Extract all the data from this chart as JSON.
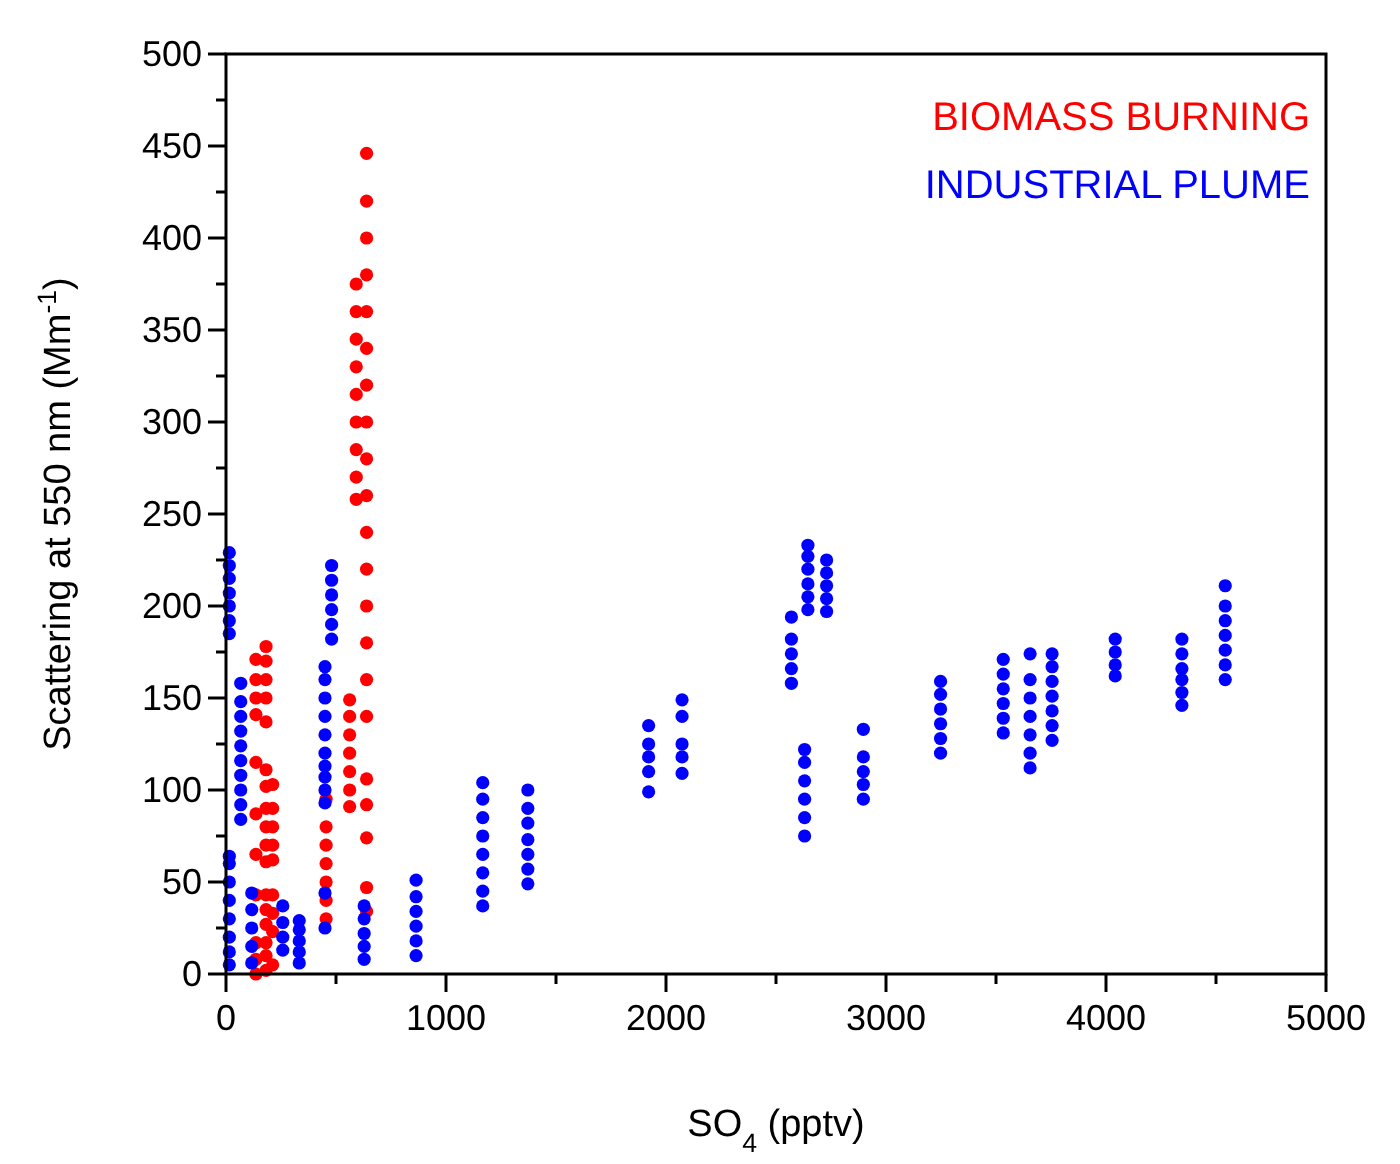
{
  "chart_data": {
    "type": "scatter",
    "xlabel": "SO$_{4}$ (pptv)",
    "ylabel": "Scattering at 550 nm (Mm$^{-1}$)",
    "xlim": [
      0,
      5000
    ],
    "ylim": [
      0,
      500
    ],
    "xticks": [
      0,
      {
        "value": 500,
        "label": null
      },
      1000,
      {
        "value": 1500,
        "label": null
      },
      2000,
      {
        "value": 2500,
        "label": null
      },
      3000,
      {
        "value": 3500,
        "label": null
      },
      4000,
      {
        "value": 4500,
        "label": null
      },
      5000
    ],
    "yticks": [
      0,
      {
        "value": 25,
        "label": null
      },
      50,
      {
        "value": 75,
        "label": null
      },
      100,
      {
        "value": 125,
        "label": null
      },
      150,
      {
        "value": 175,
        "label": null
      },
      200,
      {
        "value": 225,
        "label": null
      },
      250,
      {
        "value": 275,
        "label": null
      },
      300,
      {
        "value": 325,
        "label": null
      },
      350,
      {
        "value": 375,
        "label": null
      },
      400,
      {
        "value": 425,
        "label": null
      },
      450,
      {
        "value": 475,
        "label": null
      },
      500
    ],
    "marker": "circle",
    "legend": "top right",
    "series": [
      {
        "name": "BIOMASS BURNING",
        "color": "#ff0000",
        "x": [
          136,
          136,
          136,
          136,
          136,
          136,
          136,
          136,
          136,
          136,
          136,
          182,
          182,
          182,
          182,
          182,
          182,
          182,
          182,
          182,
          182,
          182,
          182,
          182,
          182,
          182,
          182,
          182,
          212,
          212,
          212,
          212,
          212,
          212,
          212,
          212,
          212,
          455,
          455,
          455,
          455,
          455,
          455,
          455,
          562,
          562,
          562,
          562,
          562,
          562,
          562,
          592,
          592,
          592,
          592,
          592,
          592,
          592,
          592,
          592,
          639,
          639,
          639,
          639,
          639,
          639,
          639,
          639,
          639,
          639,
          639,
          639,
          639,
          639,
          639,
          639,
          639,
          639,
          639,
          639,
          639
        ],
        "values": [
          141,
          150,
          160,
          171,
          115,
          87,
          65,
          43,
          17,
          8,
          0,
          178,
          170,
          160,
          150,
          137,
          111,
          102,
          90,
          80,
          70,
          61,
          43,
          35,
          27,
          17,
          10,
          2,
          103,
          90,
          80,
          70,
          62,
          43,
          33,
          23,
          5,
          30,
          40,
          50,
          60,
          70,
          80,
          95,
          91,
          100,
          110,
          120,
          130,
          140,
          149,
          258,
          270,
          285,
          300,
          315,
          330,
          345,
          360,
          375,
          140,
          160,
          180,
          200,
          220,
          240,
          260,
          280,
          300,
          320,
          340,
          360,
          380,
          400,
          420,
          446,
          106,
          92,
          74,
          47,
          34
        ]
      },
      {
        "name": "INDUSTRIAL PLUME",
        "color": "#0000ff",
        "x": [
          15,
          15,
          15,
          15,
          15,
          15,
          15,
          15,
          15,
          15,
          15,
          15,
          15,
          15,
          15,
          67,
          67,
          67,
          67,
          67,
          67,
          67,
          67,
          67,
          67,
          117,
          117,
          117,
          117,
          117,
          258,
          258,
          258,
          258,
          333,
          333,
          333,
          333,
          333,
          450,
          450,
          450,
          450,
          450,
          450,
          450,
          450,
          450,
          450,
          450,
          450,
          480,
          480,
          480,
          480,
          480,
          480,
          628,
          628,
          628,
          628,
          628,
          864,
          864,
          864,
          864,
          864,
          864,
          1167,
          1167,
          1167,
          1167,
          1167,
          1167,
          1167,
          1167,
          1372,
          1372,
          1372,
          1372,
          1372,
          1372,
          1372,
          1921,
          1921,
          1921,
          1921,
          1921,
          2073,
          2073,
          2073,
          2073,
          2073,
          2570,
          2570,
          2570,
          2570,
          2570,
          2630,
          2630,
          2630,
          2630,
          2630,
          2630,
          2645,
          2645,
          2645,
          2645,
          2645,
          2645,
          2730,
          2730,
          2730,
          2730,
          2730,
          2897,
          2897,
          2897,
          2897,
          2897,
          3248,
          3248,
          3248,
          3248,
          3248,
          3248,
          3533,
          3533,
          3533,
          3533,
          3533,
          3533,
          3655,
          3655,
          3655,
          3655,
          3655,
          3655,
          3655,
          3755,
          3755,
          3755,
          3755,
          3755,
          3755,
          3755,
          4042,
          4042,
          4042,
          4042,
          4345,
          4345,
          4345,
          4345,
          4345,
          4345,
          4542,
          4542,
          4542,
          4542,
          4542,
          4542,
          4542
        ],
        "values": [
          5,
          12,
          20,
          30,
          40,
          50,
          60,
          64,
          185,
          192,
          200,
          207,
          215,
          222,
          229,
          84,
          92,
          100,
          108,
          116,
          124,
          132,
          140,
          148,
          158,
          6,
          15,
          25,
          35,
          44,
          13,
          20,
          28,
          37,
          6,
          12,
          18,
          24,
          29,
          25,
          44,
          93,
          100,
          107,
          113,
          120,
          130,
          140,
          150,
          160,
          167,
          182,
          190,
          198,
          206,
          214,
          222,
          8,
          15,
          22,
          30,
          37,
          10,
          18,
          26,
          34,
          42,
          51,
          37,
          45,
          55,
          65,
          75,
          85,
          95,
          104,
          49,
          57,
          65,
          73,
          82,
          90,
          100,
          99,
          110,
          118,
          125,
          135,
          109,
          118,
          125,
          140,
          149,
          158,
          166,
          174,
          182,
          194,
          75,
          85,
          95,
          105,
          115,
          122,
          198,
          205,
          212,
          220,
          227,
          233,
          197,
          204,
          211,
          218,
          225,
          95,
          103,
          110,
          118,
          133,
          120,
          128,
          136,
          144,
          152,
          159,
          131,
          139,
          147,
          155,
          163,
          171,
          112,
          120,
          130,
          140,
          150,
          160,
          174,
          127,
          135,
          143,
          151,
          159,
          167,
          174,
          162,
          168,
          175,
          182,
          146,
          153,
          160,
          166,
          174,
          182,
          160,
          168,
          176,
          184,
          192,
          200,
          211
        ]
      }
    ]
  }
}
